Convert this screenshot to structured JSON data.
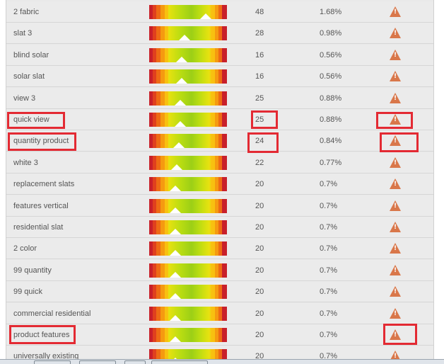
{
  "icons": {
    "warning": "warning-triangle-icon",
    "warning_color": "#d9774a"
  },
  "highlight_color": "#e32a33",
  "rows": [
    {
      "keyword": "2 fabric",
      "count": "48",
      "percent": "1.68%",
      "gauge_level": 0.73
    },
    {
      "keyword": "slat 3",
      "count": "28",
      "percent": "0.98%",
      "gauge_level": 0.45
    },
    {
      "keyword": "blind solar",
      "count": "16",
      "percent": "0.56%",
      "gauge_level": 0.42
    },
    {
      "keyword": "solar slat",
      "count": "16",
      "percent": "0.56%",
      "gauge_level": 0.42
    },
    {
      "keyword": "view 3",
      "count": "25",
      "percent": "0.88%",
      "gauge_level": 0.4
    },
    {
      "keyword": "quick view",
      "count": "25",
      "percent": "0.88%",
      "gauge_level": 0.4
    },
    {
      "keyword": "quantity product",
      "count": "24",
      "percent": "0.84%",
      "gauge_level": 0.38
    },
    {
      "keyword": "white 3",
      "count": "22",
      "percent": "0.77%",
      "gauge_level": 0.35
    },
    {
      "keyword": "replacement slats",
      "count": "20",
      "percent": "0.7%",
      "gauge_level": 0.34
    },
    {
      "keyword": "features vertical",
      "count": "20",
      "percent": "0.7%",
      "gauge_level": 0.34
    },
    {
      "keyword": "residential slat",
      "count": "20",
      "percent": "0.7%",
      "gauge_level": 0.34
    },
    {
      "keyword": "2 color",
      "count": "20",
      "percent": "0.7%",
      "gauge_level": 0.34
    },
    {
      "keyword": "99 quantity",
      "count": "20",
      "percent": "0.7%",
      "gauge_level": 0.34
    },
    {
      "keyword": "99 quick",
      "count": "20",
      "percent": "0.7%",
      "gauge_level": 0.34
    },
    {
      "keyword": "commercial residential",
      "count": "20",
      "percent": "0.7%",
      "gauge_level": 0.34
    },
    {
      "keyword": "product features",
      "count": "20",
      "percent": "0.7%",
      "gauge_level": 0.34
    },
    {
      "keyword": "universally existing",
      "count": "20",
      "percent": "0.7%",
      "gauge_level": 0.34
    }
  ]
}
